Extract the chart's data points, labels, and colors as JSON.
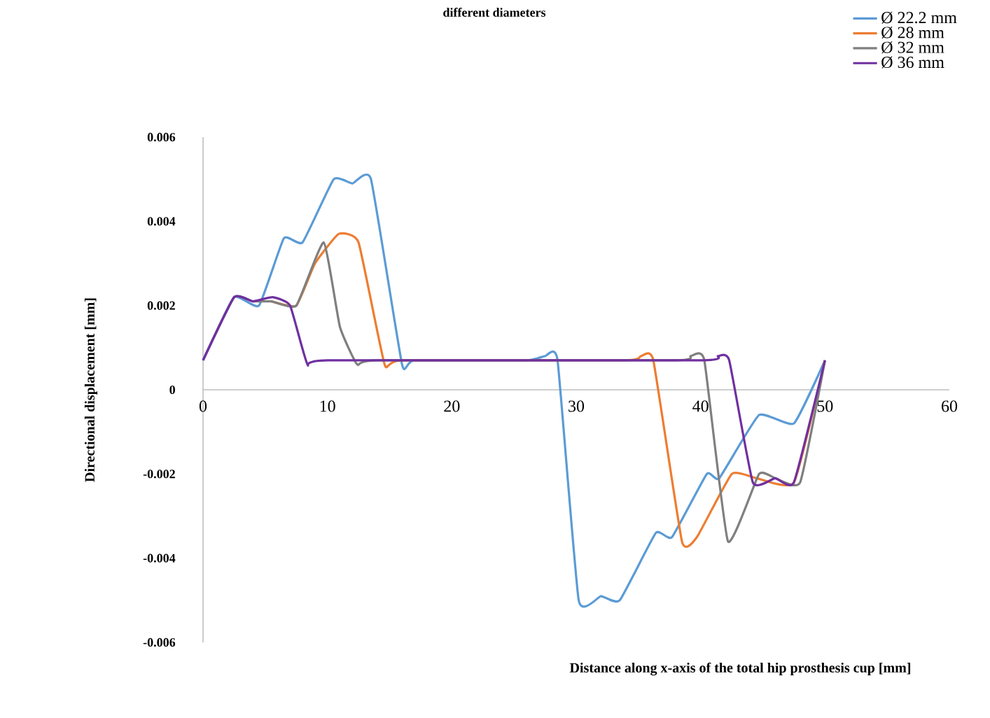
{
  "chart_data": {
    "type": "line",
    "title": "different diameters",
    "xlabel": "Distance along x-axis of the total hip prosthesis cup [mm]",
    "ylabel": "Directional displacement [mm]",
    "xlim": [
      0,
      60
    ],
    "xticks": [
      0,
      10,
      20,
      30,
      40,
      50,
      60
    ],
    "ylim": [
      -0.006,
      0.006
    ],
    "yticks": [
      -0.006,
      -0.004,
      -0.002,
      0,
      0.002,
      0.004,
      0.006
    ],
    "grid": false,
    "legend": "top right",
    "marker": "none",
    "line_style": "solid",
    "series": [
      {
        "name": "Ø 22.2 mm",
        "color": "#5b9bd5",
        "x": [
          0,
          2.5,
          4.5,
          6.5,
          8,
          10.5,
          12,
          13.5,
          16,
          17,
          26,
          27.5,
          28.5,
          30.2,
          32,
          33.5,
          36.4,
          37.7,
          40.5,
          41.5,
          44.7,
          47.5,
          50
        ],
        "values": [
          0.0007,
          0.0022,
          0.002,
          0.0036,
          0.0035,
          0.005,
          0.0049,
          0.005,
          0.0006,
          0.0007,
          0.0007,
          0.0008,
          0.0007,
          -0.005,
          -0.0049,
          -0.005,
          -0.0034,
          -0.0035,
          -0.002,
          -0.0021,
          -0.0006,
          -0.0008,
          0.0007
        ]
      },
      {
        "name": "Ø 28 mm",
        "color": "#ed7d31",
        "x": [
          5.5,
          7.5,
          9,
          10.9,
          12.5,
          14.6,
          16,
          34,
          35.2,
          36.2,
          38.5,
          39.7,
          42.5,
          44.5,
          47.5,
          50
        ],
        "values": [
          0.0021,
          0.002,
          0.003,
          0.0037,
          0.0035,
          0.0006,
          0.0007,
          0.0007,
          0.0008,
          0.0007,
          -0.0036,
          -0.0035,
          -0.002,
          -0.0021,
          -0.0022,
          0.0007
        ]
      },
      {
        "name": "Ø 32 mm",
        "color": "#7f7f7f",
        "x": [
          0,
          2.5,
          4,
          5.5,
          7.5,
          9.7,
          11,
          12.4,
          14,
          38,
          39.2,
          40.3,
          42.2,
          44.7,
          46,
          48,
          50
        ],
        "values": [
          0.0007,
          0.0022,
          0.0021,
          0.0021,
          0.002,
          0.0035,
          0.0015,
          0.0006,
          0.0007,
          0.0007,
          0.0008,
          0.0007,
          -0.0036,
          -0.002,
          -0.0021,
          -0.0022,
          0.0007
        ]
      },
      {
        "name": "Ø 36 mm",
        "color": "#7030a0",
        "x": [
          0,
          2.5,
          4,
          5.6,
          7,
          8.4,
          10,
          40,
          41.4,
          42.3,
          44.2,
          46,
          47.5,
          50
        ],
        "values": [
          0.0007,
          0.0022,
          0.0021,
          0.0022,
          0.002,
          0.0006,
          0.0007,
          0.0007,
          0.0008,
          0.0007,
          -0.0022,
          -0.0021,
          -0.0022,
          0.0007
        ]
      }
    ]
  }
}
